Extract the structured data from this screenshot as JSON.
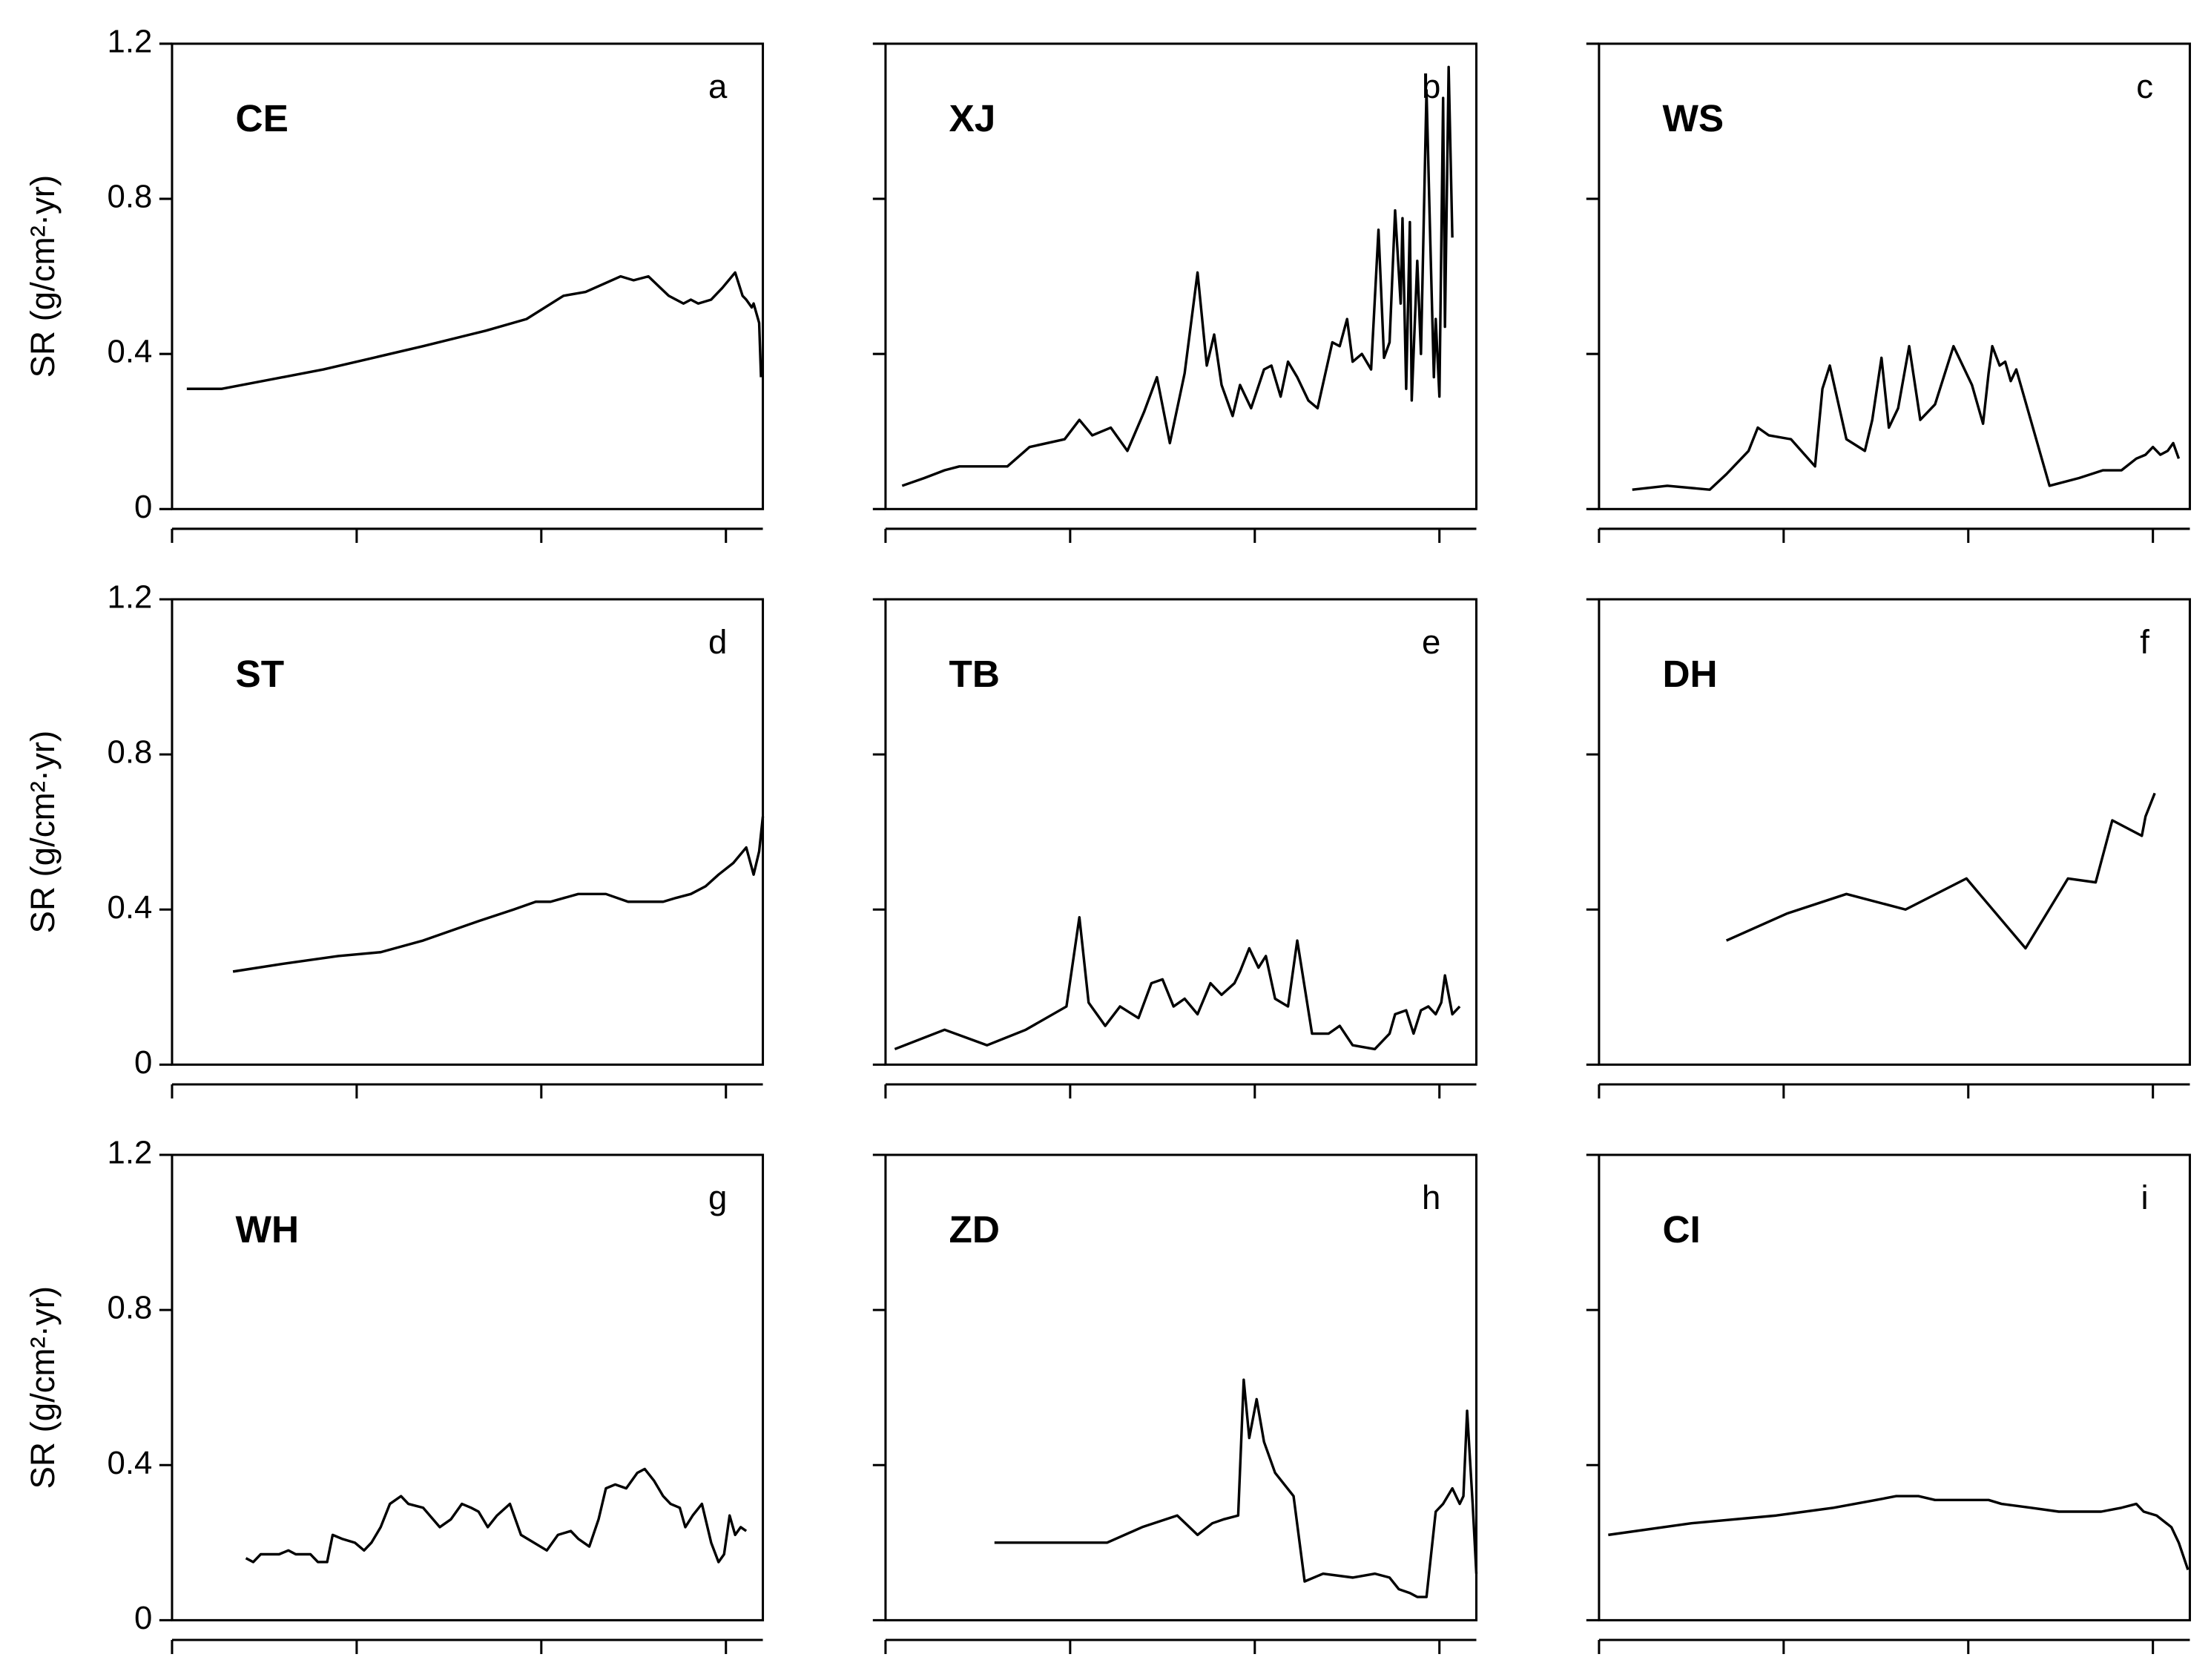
{
  "chart_data": [
    {
      "type": "line",
      "title": "CE",
      "panel_label": "a",
      "ylabel": "SR (g/cm²·yr)",
      "color": "#000000",
      "xlim": [
        0,
        3.2
      ],
      "xticks": [
        0,
        1,
        2,
        3
      ],
      "ylim": [
        0,
        1.2
      ],
      "yticks": [
        0,
        0.4,
        0.8,
        1.2
      ],
      "x": [
        0.08,
        0.27,
        0.82,
        1.36,
        1.7,
        1.92,
        2.12,
        2.24,
        2.43,
        2.5,
        2.58,
        2.69,
        2.77,
        2.81,
        2.85,
        2.92,
        2.98,
        3.05,
        3.09,
        3.11,
        3.14,
        3.15,
        3.18,
        3.19
      ],
      "values": [
        0.31,
        0.31,
        0.36,
        0.42,
        0.46,
        0.49,
        0.55,
        0.56,
        0.6,
        0.59,
        0.6,
        0.55,
        0.53,
        0.54,
        0.53,
        0.54,
        0.57,
        0.61,
        0.55,
        0.54,
        0.52,
        0.53,
        0.48,
        0.34
      ]
    },
    {
      "type": "line",
      "title": "XJ",
      "panel_label": "b",
      "color": "#000000",
      "xlim": [
        0,
        3.2
      ],
      "xticks": [
        0,
        1,
        2,
        3
      ],
      "ylim": [
        0,
        1.2
      ],
      "yticks": [
        0,
        0.4,
        0.8,
        1.2
      ],
      "x": [
        0.09,
        0.21,
        0.32,
        0.4,
        0.66,
        0.78,
        0.97,
        1.05,
        1.12,
        1.22,
        1.31,
        1.4,
        1.47,
        1.54,
        1.62,
        1.69,
        1.74,
        1.78,
        1.82,
        1.88,
        1.92,
        1.98,
        2.05,
        2.09,
        2.14,
        2.18,
        2.23,
        2.29,
        2.34,
        2.42,
        2.46,
        2.5,
        2.53,
        2.58,
        2.63,
        2.67,
        2.7,
        2.73,
        2.76,
        2.79,
        2.8,
        2.82,
        2.84,
        2.85,
        2.88,
        2.9,
        2.93,
        2.95,
        2.97,
        2.98,
        3.0,
        3.02,
        3.03,
        3.05,
        3.07
      ],
      "values": [
        0.06,
        0.08,
        0.1,
        0.11,
        0.11,
        0.16,
        0.18,
        0.23,
        0.19,
        0.21,
        0.15,
        0.25,
        0.34,
        0.17,
        0.35,
        0.61,
        0.37,
        0.45,
        0.32,
        0.24,
        0.32,
        0.26,
        0.36,
        0.37,
        0.29,
        0.38,
        0.34,
        0.28,
        0.26,
        0.43,
        0.42,
        0.49,
        0.38,
        0.4,
        0.36,
        0.72,
        0.39,
        0.43,
        0.77,
        0.53,
        0.75,
        0.31,
        0.74,
        0.28,
        0.64,
        0.4,
        1.08,
        0.7,
        0.34,
        0.49,
        0.29,
        1.06,
        0.47,
        1.14,
        0.7
      ]
    },
    {
      "type": "line",
      "title": "WS",
      "panel_label": "c",
      "color": "#000000",
      "xlim": [
        0,
        3.2
      ],
      "xticks": [
        0,
        1,
        2,
        3
      ],
      "ylim": [
        0,
        1.2
      ],
      "yticks": [
        0,
        0.4,
        0.8,
        1.2
      ],
      "x": [
        0.18,
        0.37,
        0.6,
        0.69,
        0.81,
        0.86,
        0.92,
        1.04,
        1.17,
        1.21,
        1.25,
        1.34,
        1.44,
        1.48,
        1.53,
        1.57,
        1.62,
        1.68,
        1.74,
        1.82,
        1.92,
        2.02,
        2.08,
        2.11,
        2.13,
        2.17,
        2.2,
        2.23,
        2.26,
        2.44,
        2.6,
        2.73,
        2.83,
        2.91,
        2.96,
        3.0,
        3.04,
        3.08,
        3.11,
        3.14
      ],
      "values": [
        0.05,
        0.06,
        0.05,
        0.09,
        0.15,
        0.21,
        0.19,
        0.18,
        0.11,
        0.31,
        0.37,
        0.18,
        0.15,
        0.23,
        0.39,
        0.21,
        0.26,
        0.42,
        0.23,
        0.27,
        0.42,
        0.32,
        0.22,
        0.35,
        0.42,
        0.37,
        0.38,
        0.33,
        0.36,
        0.06,
        0.08,
        0.1,
        0.1,
        0.13,
        0.14,
        0.16,
        0.14,
        0.15,
        0.17,
        0.13
      ]
    },
    {
      "type": "line",
      "title": "ST",
      "panel_label": "d",
      "ylabel": "SR (g/cm²·yr)",
      "color": "#000000",
      "xlim": [
        0,
        3.2
      ],
      "xticks": [
        0,
        1,
        2,
        3
      ],
      "ylim": [
        0,
        1.2
      ],
      "yticks": [
        0,
        0.4,
        0.8,
        1.2
      ],
      "x": [
        0.33,
        0.6,
        0.9,
        1.13,
        1.36,
        1.66,
        1.85,
        1.97,
        2.05,
        2.2,
        2.35,
        2.47,
        2.58,
        2.66,
        2.73,
        2.81,
        2.89,
        2.96,
        3.04,
        3.11,
        3.15,
        3.18,
        3.2
      ],
      "values": [
        0.24,
        0.26,
        0.28,
        0.29,
        0.32,
        0.37,
        0.4,
        0.42,
        0.42,
        0.44,
        0.44,
        0.42,
        0.42,
        0.42,
        0.43,
        0.44,
        0.46,
        0.49,
        0.52,
        0.56,
        0.49,
        0.55,
        0.64
      ]
    },
    {
      "type": "line",
      "title": "TB",
      "panel_label": "e",
      "color": "#000000",
      "xlim": [
        0,
        3.2
      ],
      "xticks": [
        0,
        1,
        2,
        3
      ],
      "ylim": [
        0,
        1.2
      ],
      "yticks": [
        0,
        0.4,
        0.8,
        1.2
      ],
      "x": [
        0.05,
        0.32,
        0.55,
        0.76,
        0.98,
        1.05,
        1.1,
        1.19,
        1.27,
        1.37,
        1.44,
        1.5,
        1.56,
        1.62,
        1.69,
        1.76,
        1.82,
        1.89,
        1.92,
        1.97,
        2.02,
        2.06,
        2.11,
        2.18,
        2.23,
        2.31,
        2.4,
        2.46,
        2.53,
        2.65,
        2.73,
        2.76,
        2.82,
        2.86,
        2.9,
        2.94,
        2.98,
        3.01,
        3.03,
        3.07,
        3.11
      ],
      "values": [
        0.04,
        0.09,
        0.05,
        0.09,
        0.15,
        0.38,
        0.16,
        0.1,
        0.15,
        0.12,
        0.21,
        0.22,
        0.15,
        0.17,
        0.13,
        0.21,
        0.18,
        0.21,
        0.24,
        0.3,
        0.25,
        0.28,
        0.17,
        0.15,
        0.32,
        0.08,
        0.08,
        0.1,
        0.05,
        0.04,
        0.08,
        0.13,
        0.14,
        0.08,
        0.14,
        0.15,
        0.13,
        0.16,
        0.23,
        0.13,
        0.15
      ]
    },
    {
      "type": "line",
      "title": "DH",
      "panel_label": "f",
      "color": "#000000",
      "xlim": [
        0,
        3.2
      ],
      "xticks": [
        0,
        1,
        2,
        3
      ],
      "ylim": [
        0,
        1.2
      ],
      "yticks": [
        0,
        0.4,
        0.8,
        1.2
      ],
      "x": [
        0.69,
        1.02,
        1.34,
        1.66,
        1.99,
        2.31,
        2.54,
        2.69,
        2.78,
        2.94,
        2.96,
        3.01
      ],
      "values": [
        0.32,
        0.39,
        0.44,
        0.4,
        0.48,
        0.3,
        0.48,
        0.47,
        0.63,
        0.59,
        0.64,
        0.7
      ]
    },
    {
      "type": "line",
      "title": "WH",
      "panel_label": "g",
      "ylabel": "SR (g/cm²·yr)",
      "color": "#000000",
      "xlim": [
        0,
        3.2
      ],
      "xticks": [
        0,
        1,
        2,
        3
      ],
      "ylim": [
        0,
        1.2
      ],
      "yticks": [
        0,
        0.4,
        0.8,
        1.2
      ],
      "x": [
        0.4,
        0.44,
        0.48,
        0.58,
        0.63,
        0.67,
        0.75,
        0.79,
        0.84,
        0.87,
        0.92,
        0.99,
        1.04,
        1.08,
        1.13,
        1.18,
        1.24,
        1.28,
        1.36,
        1.45,
        1.51,
        1.57,
        1.62,
        1.66,
        1.71,
        1.76,
        1.83,
        1.89,
        2.03,
        2.09,
        2.16,
        2.2,
        2.26,
        2.31,
        2.35,
        2.4,
        2.46,
        2.52,
        2.56,
        2.61,
        2.66,
        2.7,
        2.75,
        2.78,
        2.82,
        2.87,
        2.92,
        2.96,
        2.99,
        3.02,
        3.05,
        3.08,
        3.11
      ],
      "values": [
        0.16,
        0.15,
        0.17,
        0.17,
        0.18,
        0.17,
        0.17,
        0.15,
        0.15,
        0.22,
        0.21,
        0.2,
        0.18,
        0.2,
        0.24,
        0.3,
        0.32,
        0.3,
        0.29,
        0.24,
        0.26,
        0.3,
        0.29,
        0.28,
        0.24,
        0.27,
        0.3,
        0.22,
        0.18,
        0.22,
        0.23,
        0.21,
        0.19,
        0.26,
        0.34,
        0.35,
        0.34,
        0.38,
        0.39,
        0.36,
        0.32,
        0.3,
        0.29,
        0.24,
        0.27,
        0.3,
        0.2,
        0.15,
        0.17,
        0.27,
        0.22,
        0.24,
        0.23
      ]
    },
    {
      "type": "line",
      "title": "ZD",
      "panel_label": "h",
      "color": "#000000",
      "xlim": [
        0,
        3.2
      ],
      "xticks": [
        0,
        1,
        2,
        3
      ],
      "ylim": [
        0,
        1.2
      ],
      "yticks": [
        0,
        0.4,
        0.8,
        1.2
      ],
      "x": [
        0.59,
        1.2,
        1.39,
        1.58,
        1.69,
        1.77,
        1.83,
        1.91,
        1.94,
        1.97,
        2.01,
        2.05,
        2.11,
        2.21,
        2.27,
        2.37,
        2.53,
        2.65,
        2.73,
        2.78,
        2.84,
        2.88,
        2.93,
        2.98,
        3.02,
        3.07,
        3.11,
        3.13,
        3.15,
        3.18,
        3.2
      ],
      "values": [
        0.2,
        0.2,
        0.24,
        0.27,
        0.22,
        0.25,
        0.26,
        0.27,
        0.62,
        0.47,
        0.57,
        0.46,
        0.38,
        0.32,
        0.1,
        0.12,
        0.11,
        0.12,
        0.11,
        0.08,
        0.07,
        0.06,
        0.06,
        0.28,
        0.3,
        0.34,
        0.3,
        0.32,
        0.54,
        0.3,
        0.12
      ]
    },
    {
      "type": "line",
      "title": "CI",
      "panel_label": "i",
      "color": "#000000",
      "xlim": [
        0,
        3.2
      ],
      "xticks": [
        0,
        1,
        2,
        3
      ],
      "ylim": [
        0,
        1.2
      ],
      "yticks": [
        0,
        0.4,
        0.8,
        1.2
      ],
      "x": [
        0.05,
        0.5,
        0.96,
        1.27,
        1.5,
        1.61,
        1.73,
        1.82,
        1.95,
        2.11,
        2.18,
        2.34,
        2.49,
        2.6,
        2.72,
        2.83,
        2.91,
        2.95,
        3.02,
        3.1,
        3.14,
        3.19
      ],
      "values": [
        0.22,
        0.25,
        0.27,
        0.29,
        0.31,
        0.32,
        0.32,
        0.31,
        0.31,
        0.31,
        0.3,
        0.29,
        0.28,
        0.28,
        0.28,
        0.29,
        0.3,
        0.28,
        0.27,
        0.24,
        0.2,
        0.13
      ]
    }
  ]
}
